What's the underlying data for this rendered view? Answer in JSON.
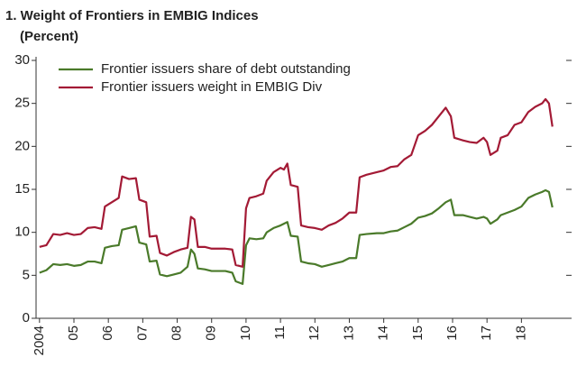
{
  "chart_data": {
    "type": "line",
    "title": "1. Weight of Frontiers in EMBIG Indices",
    "subtitle": "(Percent)",
    "x": [
      2004.0,
      2004.2,
      2004.4,
      2004.6,
      2004.8,
      2005.0,
      2005.2,
      2005.4,
      2005.6,
      2005.8,
      2005.9,
      2006.1,
      2006.3,
      2006.4,
      2006.6,
      2006.8,
      2006.9,
      2007.1,
      2007.2,
      2007.4,
      2007.5,
      2007.7,
      2007.9,
      2008.1,
      2008.3,
      2008.4,
      2008.5,
      2008.6,
      2008.8,
      2009.0,
      2009.2,
      2009.4,
      2009.6,
      2009.7,
      2009.9,
      2010.0,
      2010.1,
      2010.3,
      2010.5,
      2010.6,
      2010.8,
      2011.0,
      2011.1,
      2011.2,
      2011.3,
      2011.5,
      2011.6,
      2011.8,
      2012.0,
      2012.2,
      2012.4,
      2012.6,
      2012.8,
      2013.0,
      2013.2,
      2013.3,
      2013.5,
      2013.8,
      2014.0,
      2014.2,
      2014.4,
      2014.6,
      2014.8,
      2015.0,
      2015.2,
      2015.4,
      2015.6,
      2015.8,
      2015.95,
      2016.05,
      2016.3,
      2016.5,
      2016.7,
      2016.9,
      2017.0,
      2017.1,
      2017.3,
      2017.4,
      2017.6,
      2017.8,
      2018.0,
      2018.2,
      2018.4,
      2018.6,
      2018.7,
      2018.8,
      2018.9
    ],
    "series": [
      {
        "name": "Frontier issuers share of debt outstanding",
        "color": "#4a7a2a",
        "values": [
          5.3,
          5.6,
          6.3,
          6.2,
          6.3,
          6.1,
          6.2,
          6.6,
          6.6,
          6.4,
          8.2,
          8.4,
          8.5,
          10.3,
          10.5,
          10.7,
          8.8,
          8.6,
          6.6,
          6.7,
          5.1,
          4.9,
          5.1,
          5.3,
          6.0,
          8.0,
          7.5,
          5.8,
          5.7,
          5.5,
          5.5,
          5.5,
          5.3,
          4.3,
          4.0,
          8.5,
          9.3,
          9.2,
          9.3,
          10.0,
          10.5,
          10.8,
          11.0,
          11.2,
          9.6,
          9.5,
          6.6,
          6.4,
          6.3,
          6.0,
          6.2,
          6.4,
          6.6,
          7.0,
          7.0,
          9.7,
          9.8,
          9.9,
          9.9,
          10.1,
          10.2,
          10.6,
          11.0,
          11.7,
          11.9,
          12.2,
          12.8,
          13.5,
          13.8,
          12.0,
          12.0,
          11.8,
          11.6,
          11.8,
          11.6,
          11.0,
          11.5,
          12.0,
          12.3,
          12.6,
          13.0,
          14.0,
          14.4,
          14.7,
          14.9,
          14.7,
          12.9
        ]
      },
      {
        "name": "Frontier issuers weight in EMBIG Div",
        "color": "#a31a35",
        "values": [
          8.3,
          8.5,
          9.8,
          9.7,
          9.9,
          9.7,
          9.8,
          10.5,
          10.6,
          10.4,
          13.0,
          13.5,
          14.0,
          16.5,
          16.2,
          16.3,
          13.8,
          13.5,
          9.5,
          9.6,
          7.6,
          7.3,
          7.7,
          8.0,
          8.2,
          11.8,
          11.5,
          8.3,
          8.3,
          8.1,
          8.1,
          8.1,
          8.0,
          6.2,
          6.0,
          12.8,
          14.0,
          14.2,
          14.5,
          16.0,
          17.0,
          17.5,
          17.3,
          18.0,
          15.5,
          15.3,
          10.8,
          10.6,
          10.5,
          10.3,
          10.8,
          11.1,
          11.6,
          12.3,
          12.3,
          16.4,
          16.7,
          17.0,
          17.2,
          17.6,
          17.7,
          18.5,
          19.0,
          21.3,
          21.8,
          22.5,
          23.5,
          24.5,
          23.5,
          21.0,
          20.7,
          20.5,
          20.4,
          21.0,
          20.5,
          19.0,
          19.5,
          21.0,
          21.3,
          22.5,
          22.8,
          24.0,
          24.6,
          25.0,
          25.5,
          25.0,
          22.3
        ]
      }
    ],
    "xlim": [
      2003.9,
      2019.3
    ],
    "xticks": [
      2004,
      {
        "value": 2005,
        "label": "05"
      },
      {
        "value": 2006,
        "label": "06"
      },
      {
        "value": 2007,
        "label": "07"
      },
      {
        "value": 2008,
        "label": "08"
      },
      {
        "value": 2009,
        "label": "09"
      },
      {
        "value": 2010,
        "label": "10"
      },
      {
        "value": 2011,
        "label": "11"
      },
      {
        "value": 2012,
        "label": "12"
      },
      {
        "value": 2013,
        "label": "13"
      },
      {
        "value": 2014,
        "label": "14"
      },
      {
        "value": 2015,
        "label": "15"
      },
      {
        "value": 2016,
        "label": "16"
      },
      {
        "value": 2017,
        "label": "17"
      },
      {
        "value": 2018,
        "label": "18"
      }
    ],
    "ylim": [
      0,
      30
    ],
    "yticks": [
      0,
      5,
      10,
      15,
      20,
      25,
      30
    ],
    "legend": "top-left"
  }
}
